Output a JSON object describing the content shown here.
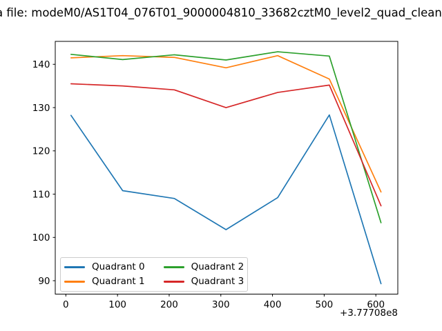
{
  "title": "a file: modeM0/AS1T04_076T01_9000004810_33682cztM0_level2_quad_clean",
  "chart_data": {
    "type": "line",
    "x": [
      10,
      110,
      210,
      310,
      410,
      510,
      610
    ],
    "x_offset_label": "+3.77708e8",
    "series": [
      {
        "name": "Quadrant 0",
        "color": "#1f77b4",
        "values": [
          128.2,
          110.8,
          109.0,
          101.8,
          109.2,
          128.3,
          89.3
        ]
      },
      {
        "name": "Quadrant 1",
        "color": "#ff7f0e",
        "values": [
          141.5,
          142.0,
          141.6,
          139.2,
          142.0,
          136.6,
          110.5
        ]
      },
      {
        "name": "Quadrant 2",
        "color": "#2ca02c",
        "values": [
          142.3,
          141.1,
          142.2,
          141.0,
          142.9,
          141.9,
          103.4
        ]
      },
      {
        "name": "Quadrant 3",
        "color": "#d62728",
        "values": [
          135.5,
          135.0,
          134.1,
          130.0,
          133.5,
          135.2,
          107.3
        ]
      },
      {
        "name": "",
        "color": "",
        "values": []
      }
    ],
    "xticks": [
      0,
      100,
      200,
      300,
      400,
      500,
      600
    ],
    "yticks": [
      90,
      100,
      110,
      120,
      130,
      140
    ],
    "xlim": [
      -20.5,
      642.5
    ],
    "ylim": [
      86.9,
      145.3
    ],
    "legend": {
      "position": "lower left",
      "columns": 2,
      "column_order": [
        0,
        2,
        1,
        3
      ]
    },
    "grid": false,
    "xlabel": "",
    "ylabel": ""
  }
}
